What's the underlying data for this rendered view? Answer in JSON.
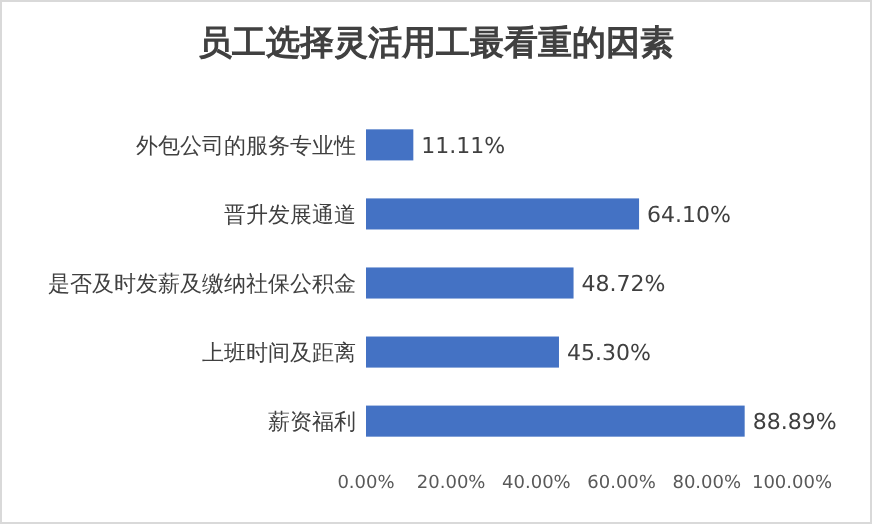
{
  "chart_data": {
    "type": "bar",
    "orientation": "horizontal",
    "title": "员工选择灵活用工最看重的因素",
    "categories": [
      "外包公司的服务专业性",
      "晋升发展通道",
      "是否及时发薪及缴纳社保公积金",
      "上班时间及距离",
      "薪资福利"
    ],
    "values": [
      11.11,
      64.1,
      48.72,
      45.3,
      88.89
    ],
    "value_labels": [
      "11.11%",
      "64.10%",
      "48.72%",
      "45.30%",
      "88.89%"
    ],
    "color": "#4472c4",
    "xlim": [
      0,
      100
    ],
    "xticks": [
      {
        "value": 0,
        "label": "0.00%"
      },
      {
        "value": 20,
        "label": "20.00%"
      },
      {
        "value": 40,
        "label": "40.00%"
      },
      {
        "value": 60,
        "label": "60.00%"
      },
      {
        "value": 80,
        "label": "80.00%"
      },
      {
        "value": 100,
        "label": "100.00%"
      }
    ],
    "grid": false
  }
}
